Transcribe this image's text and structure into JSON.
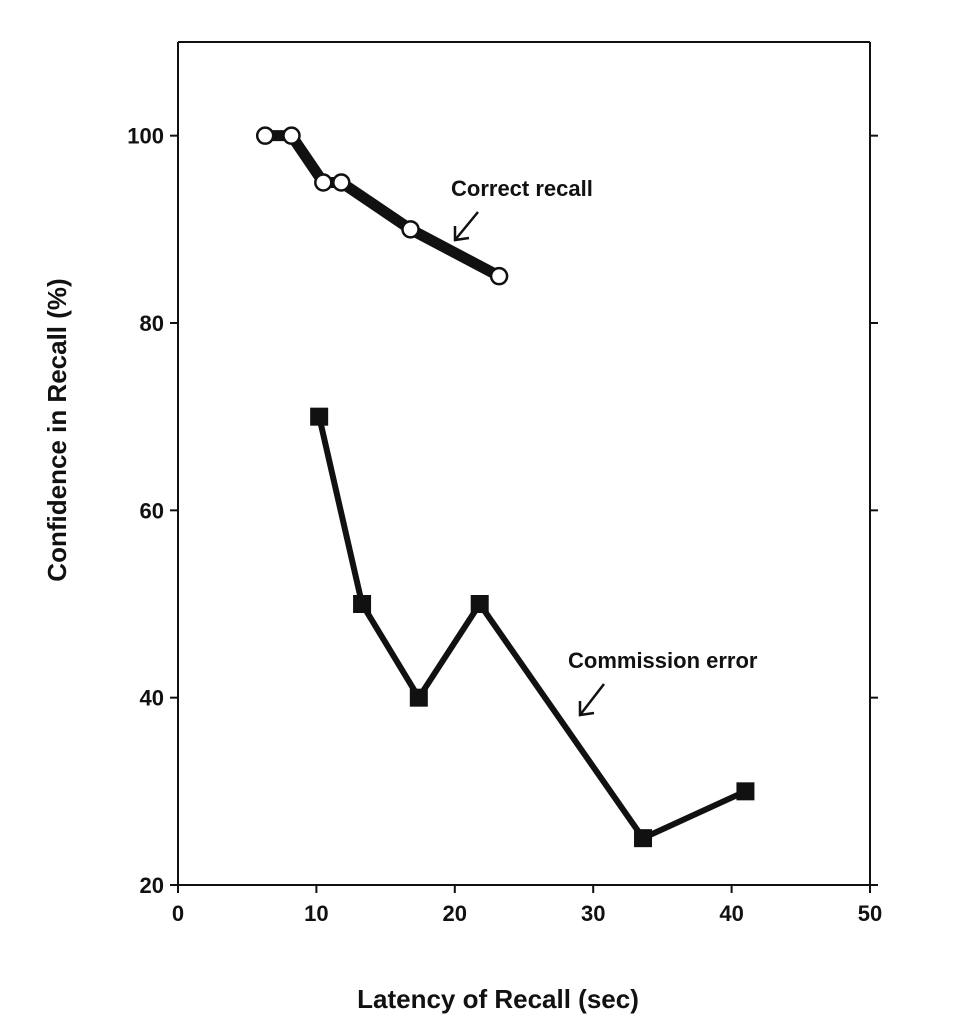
{
  "chart_data": {
    "type": "line",
    "title": "",
    "xlabel": "Latency of Recall (sec)",
    "ylabel": "Confidence in Recall (%)",
    "xlim": [
      0,
      50
    ],
    "ylim": [
      20,
      110
    ],
    "x_ticks": [
      0,
      10,
      20,
      30,
      40,
      50
    ],
    "y_ticks": [
      20,
      40,
      60,
      80,
      100
    ],
    "grid": false,
    "legend": "none",
    "series": [
      {
        "name": "Correct recall",
        "marker": "open-circle",
        "color": "#111111",
        "points": [
          {
            "x": 6.3,
            "y": 100
          },
          {
            "x": 8.2,
            "y": 100
          },
          {
            "x": 10.5,
            "y": 95
          },
          {
            "x": 11.8,
            "y": 95
          },
          {
            "x": 16.8,
            "y": 90
          },
          {
            "x": 23.2,
            "y": 85
          }
        ]
      },
      {
        "name": "Commission error",
        "marker": "filled-square",
        "color": "#111111",
        "points": [
          {
            "x": 10.2,
            "y": 70
          },
          {
            "x": 13.3,
            "y": 50
          },
          {
            "x": 17.4,
            "y": 40
          },
          {
            "x": 21.8,
            "y": 50
          },
          {
            "x": 33.6,
            "y": 25
          },
          {
            "x": 41.0,
            "y": 30
          }
        ]
      }
    ]
  }
}
